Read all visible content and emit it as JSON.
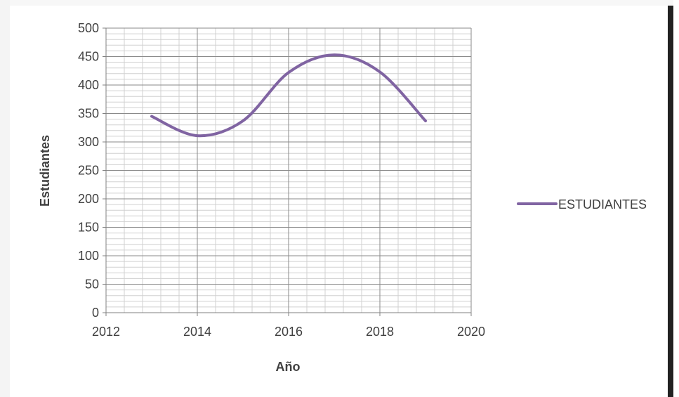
{
  "chart_data": {
    "type": "line",
    "title": "",
    "xlabel": "Año",
    "ylabel": "Estudiantes",
    "xlim": [
      2012,
      2020
    ],
    "ylim": [
      0,
      500
    ],
    "x_ticks": [
      2012,
      2014,
      2016,
      2018,
      2020
    ],
    "y_ticks": [
      0,
      50,
      100,
      150,
      200,
      250,
      300,
      350,
      400,
      450,
      500
    ],
    "x_tick_labels": [
      "2012",
      "2014",
      "2016",
      "2018",
      "2020"
    ],
    "y_tick_labels": [
      "0",
      "50",
      "100",
      "150",
      "200",
      "250",
      "300",
      "350",
      "400",
      "450",
      "500"
    ],
    "grid": true,
    "smooth": true,
    "legend_position": "right",
    "series": [
      {
        "name": "ESTUDIANTES",
        "color": "#8064A2",
        "x": [
          2013,
          2014,
          2015,
          2016,
          2017,
          2018,
          2019
        ],
        "y": [
          345,
          311,
          337,
          422,
          453,
          423,
          337
        ]
      }
    ]
  }
}
